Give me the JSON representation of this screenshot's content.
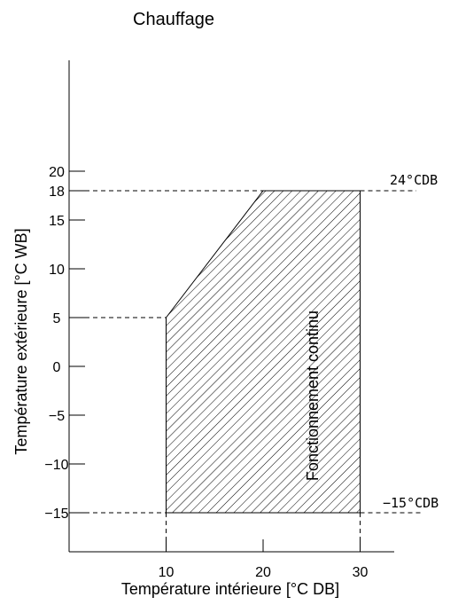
{
  "chart_data": {
    "type": "area",
    "title": "Chauffage",
    "xlabel": "Température intérieure [°C DB]",
    "ylabel": "Température extérieure [°C WB]",
    "xlim": [
      0,
      33
    ],
    "ylim": [
      -19,
      50
    ],
    "x_ticks": [
      10,
      20,
      30
    ],
    "y_ticks": [
      -15,
      -10,
      -5,
      0,
      5,
      10,
      15,
      18,
      20
    ],
    "y_tick_labels": [
      "−15",
      "−10",
      "−5",
      "0",
      "5",
      "10",
      "15",
      "18",
      "20"
    ],
    "grid": false,
    "legend": "none",
    "region": {
      "name": "Fonctionnement continu",
      "fill": "diagonal-hatch",
      "polygon": [
        [
          10,
          -15
        ],
        [
          10,
          5
        ],
        [
          20,
          18
        ],
        [
          30,
          18
        ],
        [
          30,
          -15
        ]
      ]
    },
    "reference_lines": [
      {
        "y": 18,
        "label": "24°CDB"
      },
      {
        "y": -15,
        "label": "−15°CDB"
      }
    ]
  }
}
